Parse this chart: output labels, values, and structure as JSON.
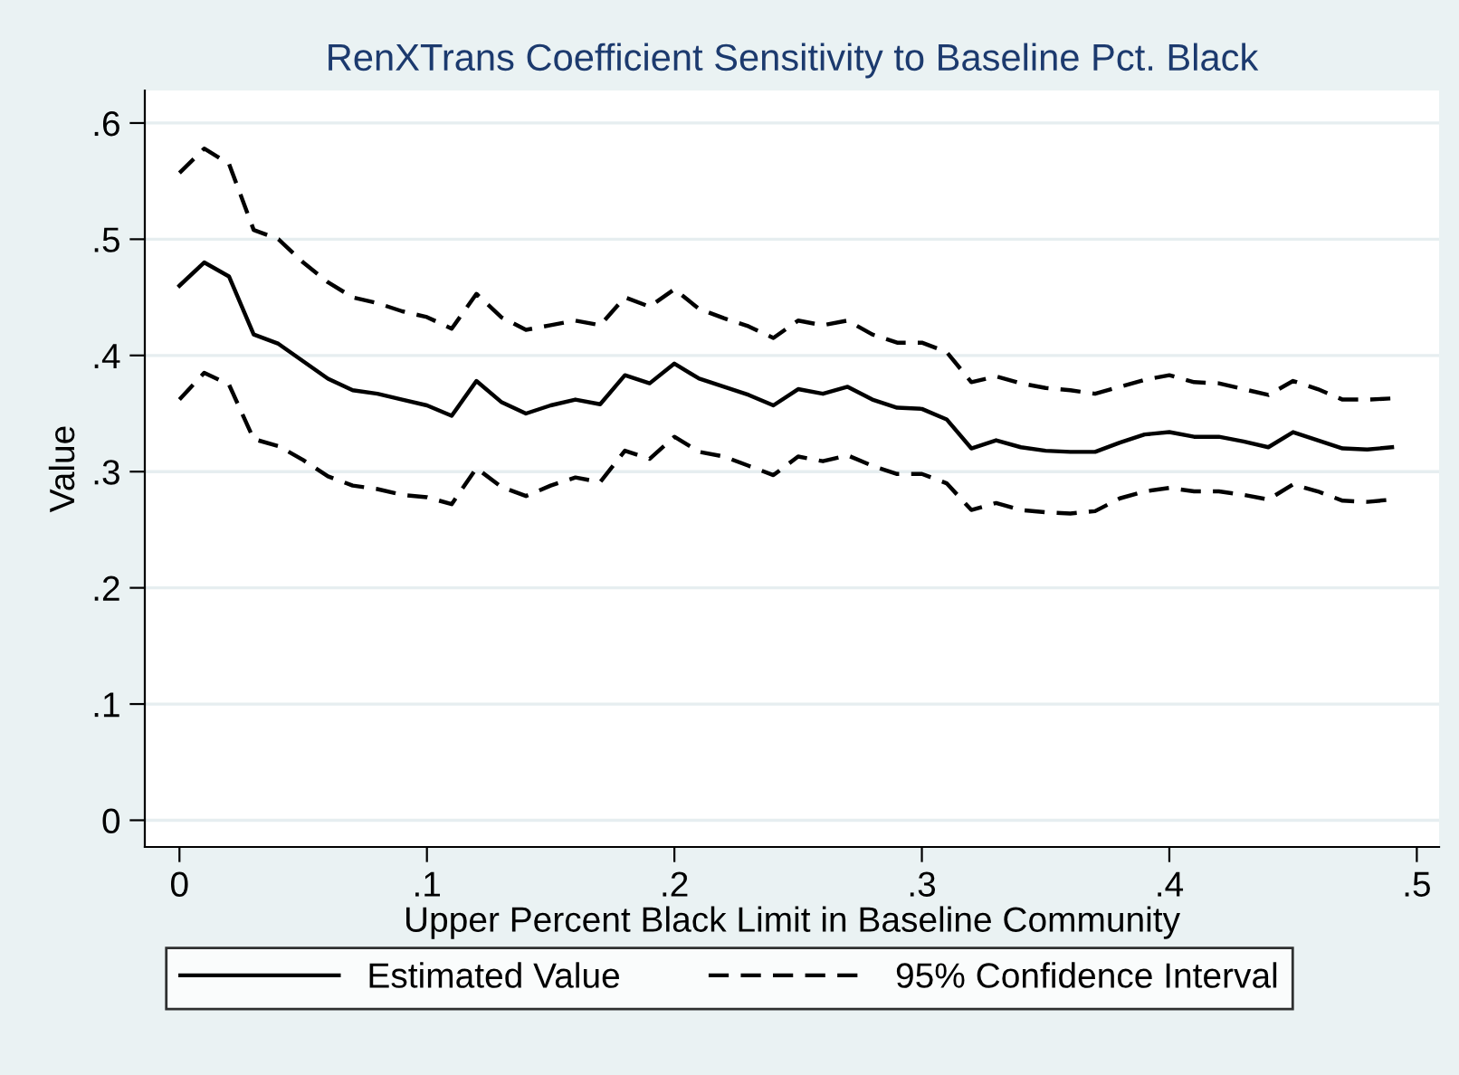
{
  "chart_data": {
    "type": "line",
    "title": "RenXTrans Coefficient Sensitivity to Baseline Pct. Black",
    "xlabel": "Upper Percent Black Limit in Baseline Community",
    "ylabel": "Value",
    "x": [
      0,
      0.01,
      0.02,
      0.03,
      0.04,
      0.05,
      0.06,
      0.07,
      0.08,
      0.09,
      0.1,
      0.11,
      0.12,
      0.13,
      0.14,
      0.15,
      0.16,
      0.17,
      0.18,
      0.19,
      0.2,
      0.21,
      0.22,
      0.23,
      0.24,
      0.25,
      0.26,
      0.27,
      0.28,
      0.29,
      0.3,
      0.31,
      0.32,
      0.33,
      0.34,
      0.35,
      0.36,
      0.37,
      0.38,
      0.39,
      0.4,
      0.41,
      0.42,
      0.43,
      0.44,
      0.45,
      0.46,
      0.47,
      0.48,
      0.49
    ],
    "series": [
      {
        "name": "Estimated Value",
        "color": "#000000",
        "line_style": "solid",
        "values": [
          0.46,
          0.48,
          0.468,
          0.418,
          0.41,
          0.395,
          0.38,
          0.37,
          0.367,
          0.362,
          0.357,
          0.348,
          0.378,
          0.36,
          0.35,
          0.357,
          0.362,
          0.358,
          0.383,
          0.376,
          0.393,
          0.38,
          0.373,
          0.366,
          0.357,
          0.371,
          0.367,
          0.373,
          0.362,
          0.355,
          0.354,
          0.345,
          0.32,
          0.327,
          0.321,
          0.318,
          0.317,
          0.317,
          0.325,
          0.332,
          0.334,
          0.33,
          0.33,
          0.326,
          0.321,
          0.334,
          0.327,
          0.32,
          0.319,
          0.321
        ]
      },
      {
        "name": "95% Confidence Interval",
        "color": "#000000",
        "line_style": "dashed",
        "values": [
          0.557,
          0.578,
          0.565,
          0.508,
          0.5,
          0.48,
          0.463,
          0.45,
          0.445,
          0.438,
          0.433,
          0.423,
          0.453,
          0.433,
          0.422,
          0.426,
          0.43,
          0.426,
          0.45,
          0.442,
          0.457,
          0.44,
          0.432,
          0.425,
          0.415,
          0.43,
          0.426,
          0.43,
          0.418,
          0.411,
          0.411,
          0.403,
          0.377,
          0.382,
          0.376,
          0.372,
          0.37,
          0.367,
          0.373,
          0.379,
          0.383,
          0.377,
          0.376,
          0.371,
          0.366,
          0.378,
          0.371,
          0.362,
          0.362,
          0.363
        ]
      },
      {
        "color": "#000000",
        "line_style": "dashed",
        "values": [
          0.362,
          0.385,
          0.375,
          0.328,
          0.322,
          0.31,
          0.296,
          0.288,
          0.285,
          0.28,
          0.278,
          0.272,
          0.303,
          0.287,
          0.279,
          0.288,
          0.295,
          0.291,
          0.318,
          0.311,
          0.33,
          0.317,
          0.313,
          0.305,
          0.297,
          0.313,
          0.309,
          0.314,
          0.305,
          0.298,
          0.298,
          0.29,
          0.267,
          0.273,
          0.267,
          0.265,
          0.264,
          0.266,
          0.277,
          0.283,
          0.286,
          0.283,
          0.283,
          0.28,
          0.276,
          0.289,
          0.283,
          0.275,
          0.274,
          0.276
        ]
      }
    ],
    "xlim": [
      -0.014,
      0.509
    ],
    "ylim": [
      -0.023,
      0.628
    ],
    "xticks": [
      0,
      {
        "value": 0.1,
        "label": ".1"
      },
      {
        "value": 0.2,
        "label": ".2"
      },
      {
        "value": 0.3,
        "label": ".3"
      },
      {
        "value": 0.4,
        "label": ".4"
      },
      {
        "value": 0.5,
        "label": ".5"
      }
    ],
    "yticks": [
      0,
      {
        "value": 0.1,
        "label": ".1"
      },
      {
        "value": 0.2,
        "label": ".2"
      },
      {
        "value": 0.3,
        "label": ".3"
      },
      {
        "value": 0.4,
        "label": ".4"
      },
      {
        "value": 0.5,
        "label": ".5"
      },
      {
        "value": 0.6,
        "label": ".6"
      }
    ],
    "grid": "y",
    "legend": "bottom",
    "marker": "none"
  }
}
